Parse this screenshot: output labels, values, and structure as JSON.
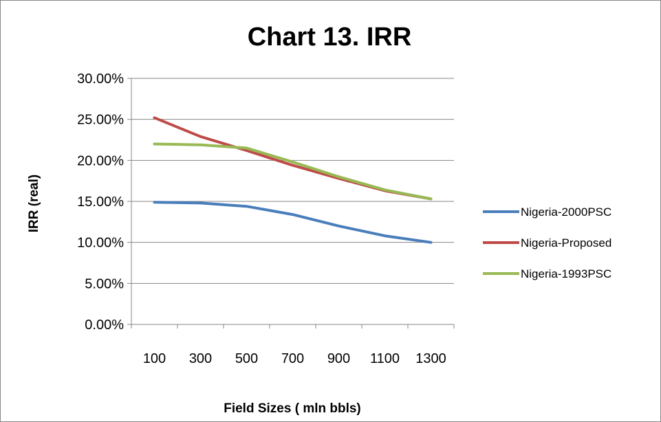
{
  "chart_data": {
    "type": "line",
    "title": "Chart  13. IRR",
    "xlabel": "Field Sizes ( mln bbls)",
    "ylabel": "IRR (real)",
    "categories": [
      "100",
      "300",
      "500",
      "700",
      "900",
      "1100",
      "1300"
    ],
    "ylim": [
      0,
      0.3
    ],
    "ytick_values": [
      0,
      0.05,
      0.1,
      0.15,
      0.2,
      0.25,
      0.3
    ],
    "ytick_labels": [
      "0.00%",
      "5.00%",
      "10.00%",
      "15.00%",
      "20.00%",
      "25.00%",
      "30.00%"
    ],
    "grid": true,
    "legend_position": "right",
    "series": [
      {
        "name": "Nigeria-2000PSC",
        "color": "#4a7ebb",
        "values": [
          0.149,
          0.148,
          0.144,
          0.134,
          0.12,
          0.108,
          0.1
        ]
      },
      {
        "name": "Nigeria-Proposed",
        "color": "#be4b48",
        "values": [
          0.252,
          0.229,
          0.212,
          0.194,
          0.178,
          0.163,
          0.153
        ]
      },
      {
        "name": "Nigeria-1993PSC",
        "color": "#98b954",
        "values": [
          0.22,
          0.219,
          0.215,
          0.198,
          0.18,
          0.164,
          0.153
        ]
      }
    ]
  }
}
